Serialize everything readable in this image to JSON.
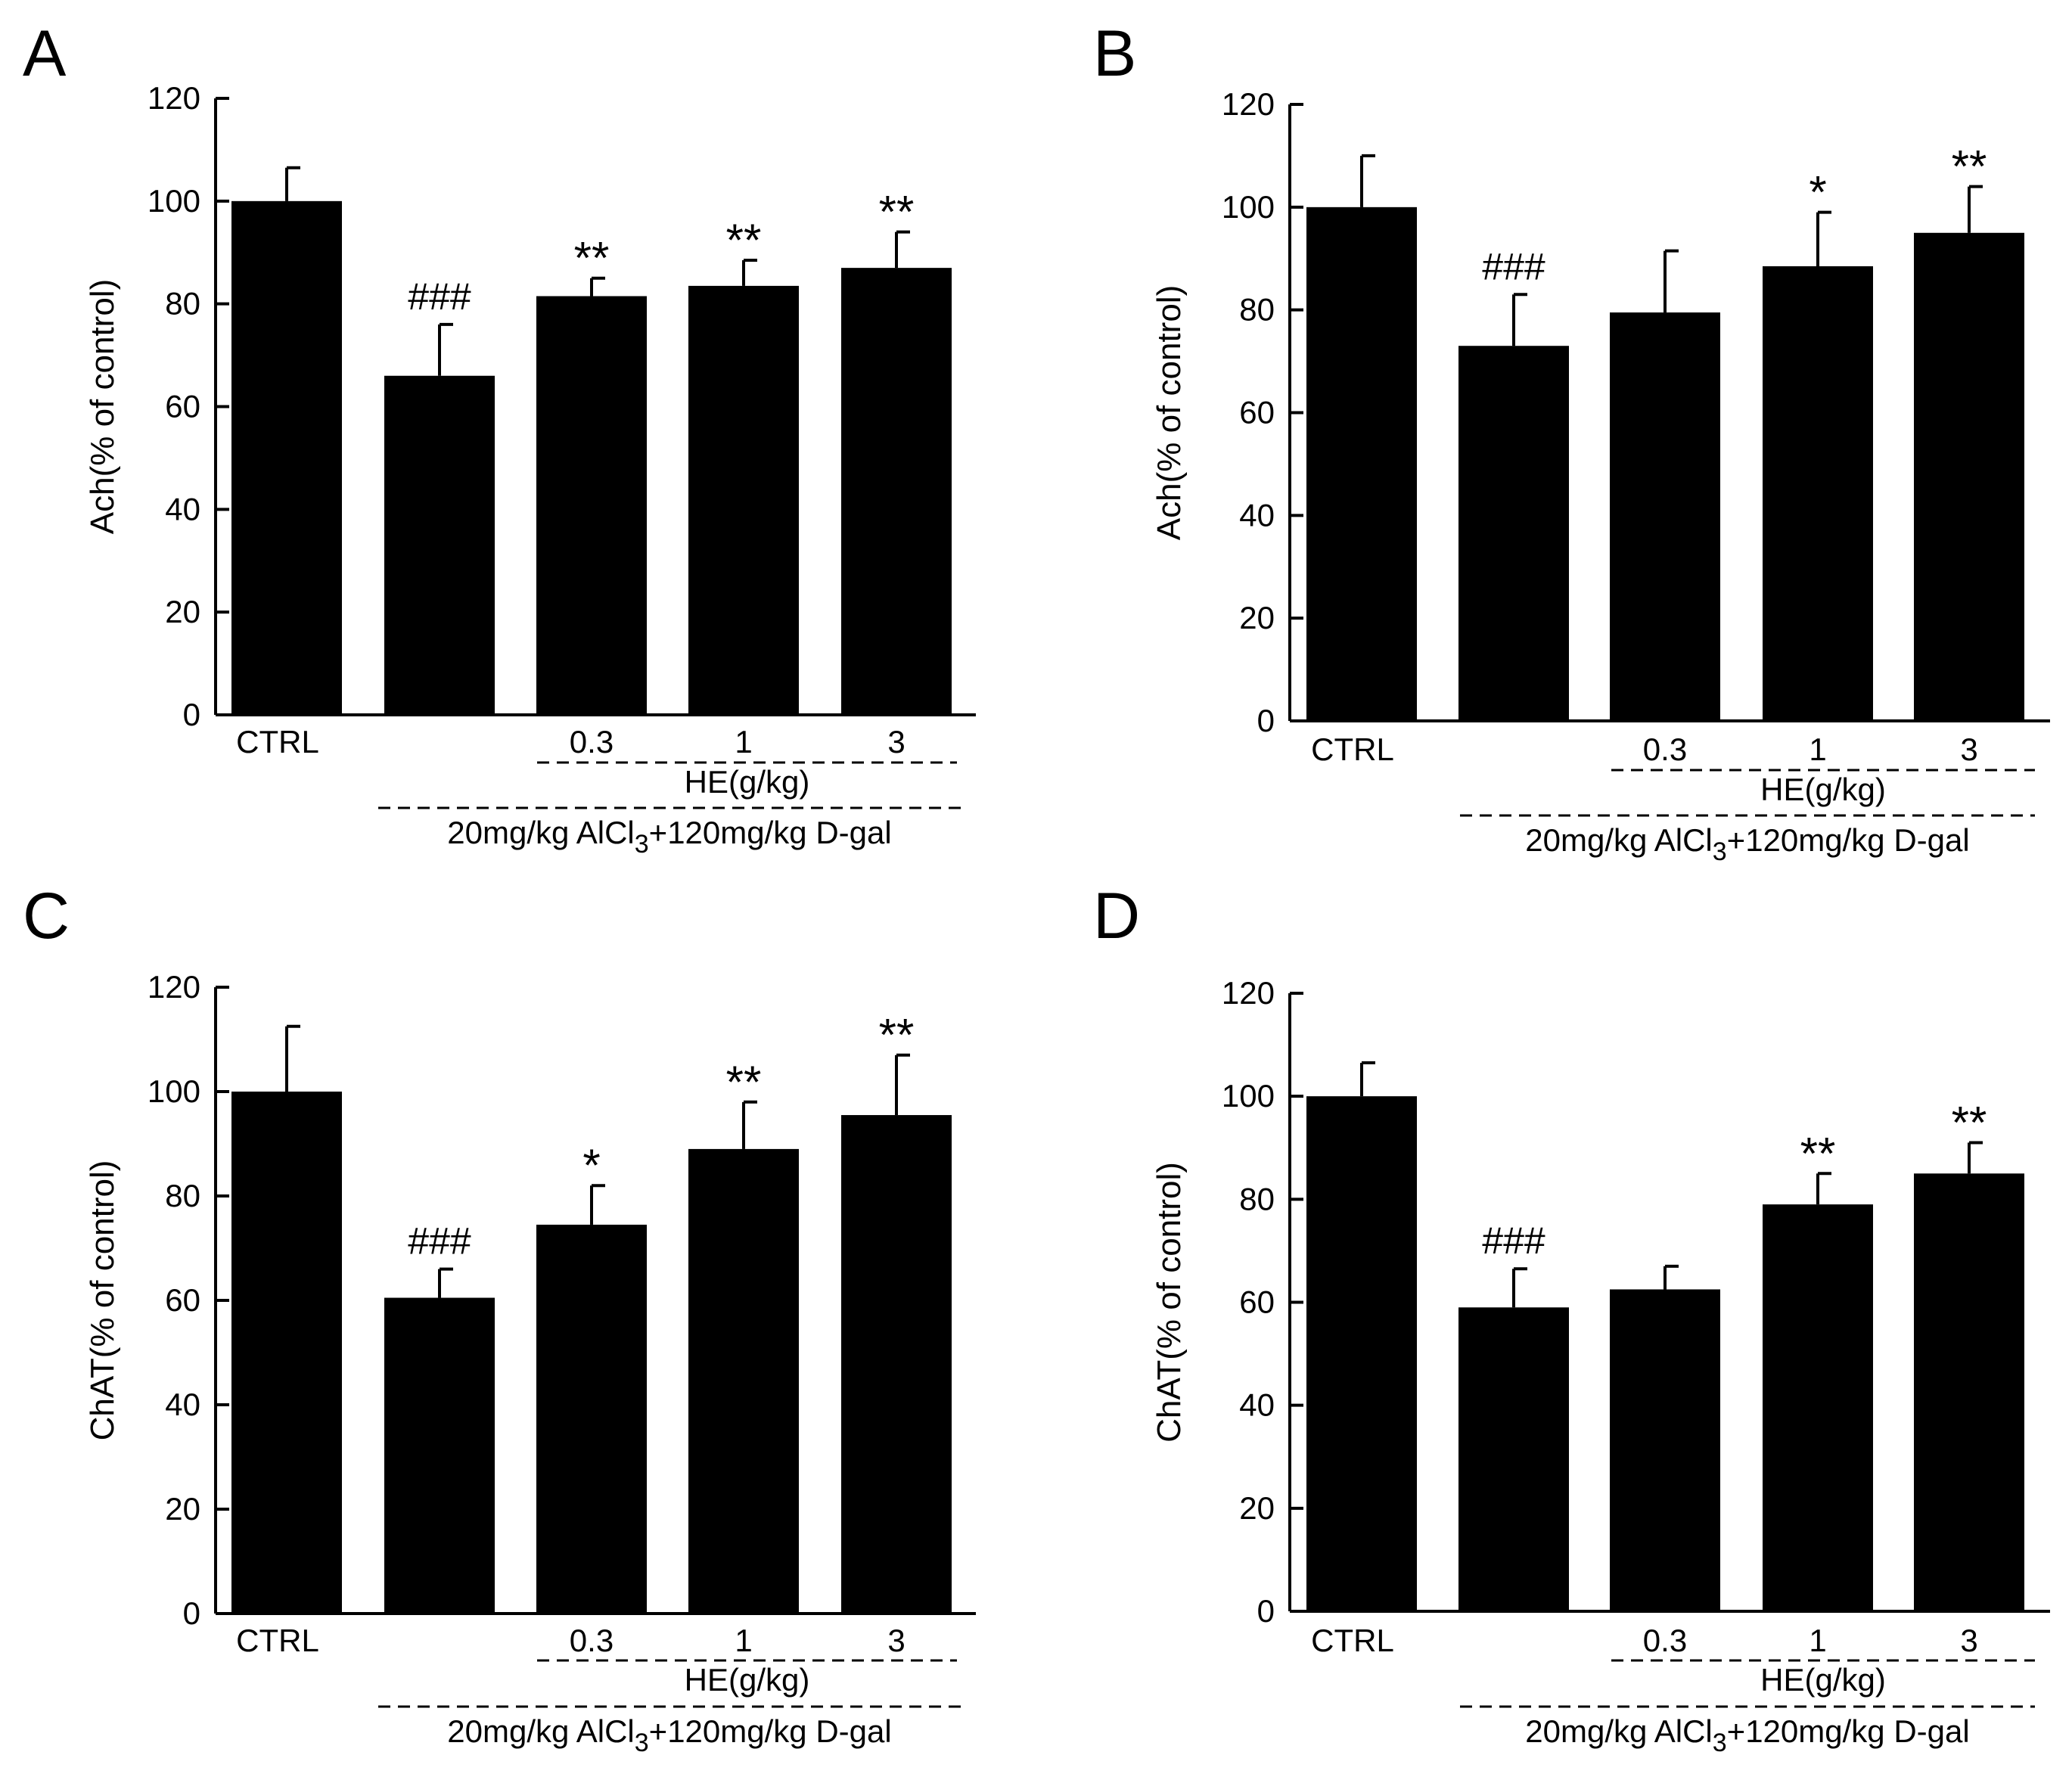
{
  "chart_data": [
    {
      "type": "bar",
      "panel_label": "A",
      "ylabel": "Ach(% of control)",
      "ylim": [
        0,
        120
      ],
      "yticks": [
        "0",
        "20",
        "40",
        "60",
        "80",
        "100",
        "120"
      ],
      "categories": [
        "CTRL",
        "",
        "0.3",
        "1",
        "3"
      ],
      "values": [
        100,
        66,
        81.5,
        83.5,
        87
      ],
      "errors": [
        6.5,
        10,
        3.5,
        5,
        7
      ],
      "annotations": [
        "",
        "###",
        "**",
        "**",
        "**"
      ],
      "group_label_he": "HE(g/kg)",
      "group_label_model": "20mg/kg AlCl",
      "group_label_model_sub": "3",
      "group_label_model_rest": "+120mg/kg D-gal"
    },
    {
      "type": "bar",
      "panel_label": "B",
      "ylabel": "Ach(% of control)",
      "ylim": [
        0,
        120
      ],
      "yticks": [
        "0",
        "20",
        "40",
        "60",
        "80",
        "100",
        "120"
      ],
      "categories": [
        "CTRL",
        "",
        "0.3",
        "1",
        "3"
      ],
      "values": [
        100,
        73,
        79.5,
        88.5,
        95
      ],
      "errors": [
        10,
        10,
        12,
        10.5,
        9
      ],
      "annotations": [
        "",
        "###",
        "",
        "*",
        "**"
      ],
      "group_label_he": "HE(g/kg)",
      "group_label_model": "20mg/kg AlCl",
      "group_label_model_sub": "3",
      "group_label_model_rest": "+120mg/kg D-gal"
    },
    {
      "type": "bar",
      "panel_label": "C",
      "ylabel": "ChAT(% of control)",
      "ylim": [
        0,
        120
      ],
      "yticks": [
        "0",
        "20",
        "40",
        "60",
        "80",
        "100",
        "120"
      ],
      "categories": [
        "CTRL",
        "",
        "0.3",
        "1",
        "3"
      ],
      "values": [
        100,
        60.5,
        74.5,
        89,
        95.5
      ],
      "errors": [
        12.5,
        5.5,
        7.5,
        9,
        11.5
      ],
      "annotations": [
        "",
        "###",
        "*",
        "**",
        "**"
      ],
      "group_label_he": "HE(g/kg)",
      "group_label_model": "20mg/kg AlCl",
      "group_label_model_sub": "3",
      "group_label_model_rest": "+120mg/kg D-gal"
    },
    {
      "type": "bar",
      "panel_label": "D",
      "ylabel": "ChAT(% of control)",
      "ylim": [
        0,
        120
      ],
      "yticks": [
        "0",
        "20",
        "40",
        "60",
        "80",
        "100",
        "120"
      ],
      "categories": [
        "CTRL",
        "",
        "0.3",
        "1",
        "3"
      ],
      "values": [
        100,
        59,
        62.5,
        79,
        85
      ],
      "errors": [
        6.5,
        7.5,
        4.5,
        6,
        6
      ],
      "annotations": [
        "",
        "###",
        "",
        "**",
        "**"
      ],
      "group_label_he": "HE(g/kg)",
      "group_label_model": "20mg/kg AlCl",
      "group_label_model_sub": "3",
      "group_label_model_rest": "+120mg/kg D-gal"
    }
  ]
}
